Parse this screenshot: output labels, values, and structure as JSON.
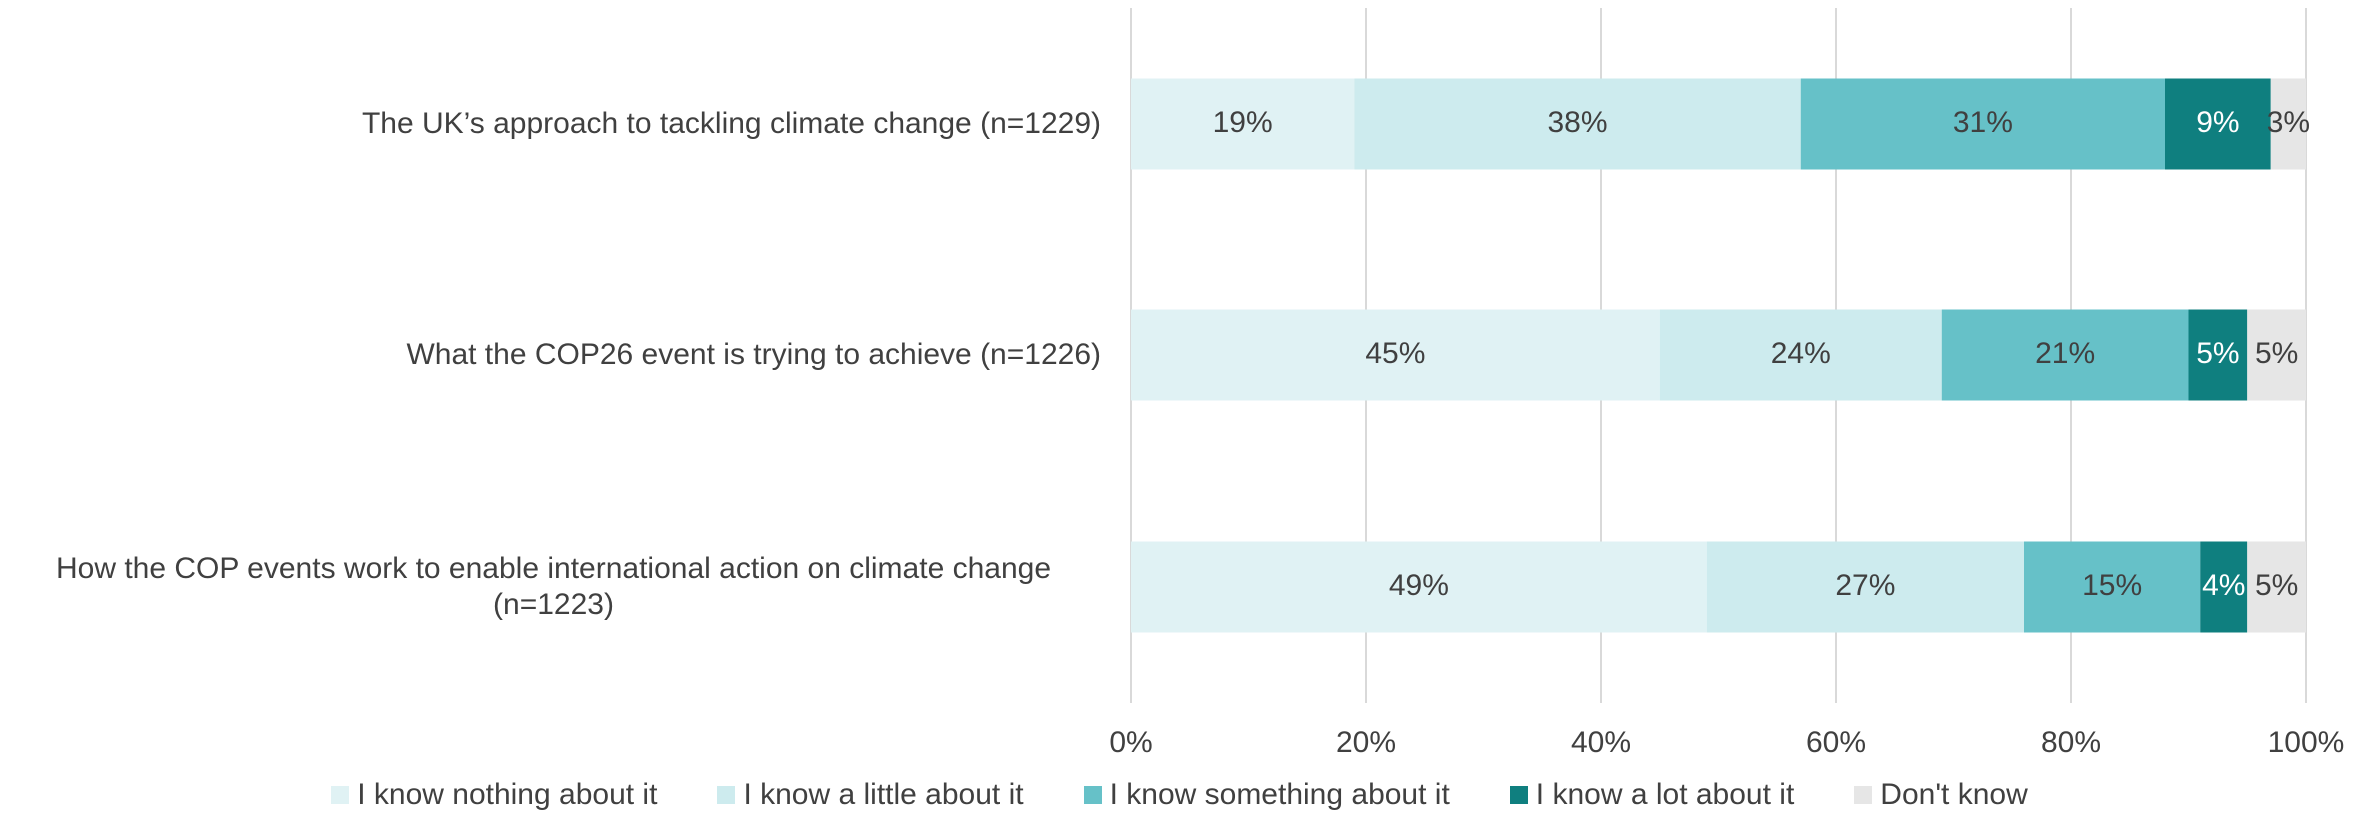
{
  "chart_data": {
    "type": "stacked-bar-horizontal",
    "categories": [
      "The UK’s approach to tackling climate change (n=1229)",
      "What the COP26 event is trying to achieve (n=1226)",
      "How the COP events work to enable international action on climate change (n=1223)"
    ],
    "series": [
      {
        "name": "I know nothing about it",
        "color": "#e0f2f4",
        "values": [
          19,
          45,
          49
        ],
        "value_labels": [
          "19%",
          "45%",
          "49%"
        ]
      },
      {
        "name": "I know a little about it",
        "color": "#cdebee",
        "values": [
          38,
          24,
          27
        ],
        "value_labels": [
          "38%",
          "24%",
          "27%"
        ]
      },
      {
        "name": "I know something about it",
        "color": "#66c1c8",
        "values": [
          31,
          21,
          15
        ],
        "value_labels": [
          "31%",
          "21%",
          "15%"
        ]
      },
      {
        "name": "I know a lot about it",
        "color": "#0f7f7f",
        "values": [
          9,
          5,
          4
        ],
        "value_labels": [
          "9%",
          "5%",
          "4%"
        ]
      },
      {
        "name": "Don't know",
        "color": "#e6e6e6",
        "values": [
          3,
          5,
          5
        ],
        "value_labels": [
          "3%",
          "5%",
          "5%"
        ]
      }
    ],
    "xlim": [
      0,
      100
    ],
    "xticks": [
      {
        "value": 0,
        "label": "0%"
      },
      {
        "value": 20,
        "label": "20%"
      },
      {
        "value": 40,
        "label": "40%"
      },
      {
        "value": 60,
        "label": "60%"
      },
      {
        "value": 80,
        "label": "80%"
      },
      {
        "value": 100,
        "label": "100%"
      }
    ],
    "grid": true,
    "legend": "bottom"
  }
}
